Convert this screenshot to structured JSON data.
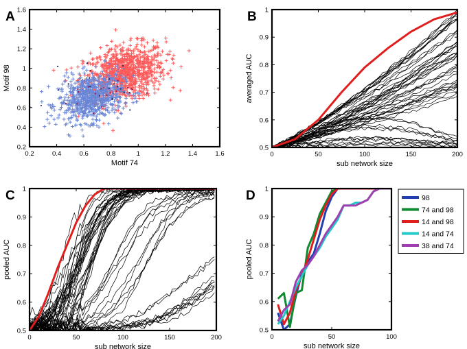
{
  "chart_data": [
    {
      "id": "A",
      "type": "scatter",
      "panel_label": "A",
      "xlabel": "Motif 74",
      "ylabel": "Motif 98",
      "xlim": [
        0.2,
        1.6
      ],
      "ylim": [
        0.2,
        1.6
      ],
      "xticks": [
        "0.2",
        "0.4",
        "0.6",
        "0.8",
        "1",
        "1.2",
        "1.4",
        "1.6"
      ],
      "yticks": [
        "0.2",
        "0.4",
        "0.6",
        "0.8",
        "1",
        "1.2",
        "1.4",
        "1.6"
      ],
      "series": [
        {
          "name": "red cluster",
          "color": "#ff5a5a",
          "marker": "plus",
          "center": [
            0.9,
            0.95
          ],
          "spread": [
            0.15,
            0.14
          ],
          "count": 900
        },
        {
          "name": "blue cluster",
          "color": "#6a86d6",
          "marker": "plus",
          "center": [
            0.65,
            0.7
          ],
          "spread": [
            0.12,
            0.12
          ],
          "count": 700
        }
      ]
    },
    {
      "id": "B",
      "type": "line",
      "panel_label": "B",
      "xlabel": "sub network size",
      "ylabel": "averaged AUC",
      "xlim": [
        0,
        200
      ],
      "ylim": [
        0.5,
        1
      ],
      "xticks": [
        "0",
        "50",
        "100",
        "150",
        "200"
      ],
      "yticks": [
        "0.5",
        "0.6",
        "0.7",
        "0.8",
        "0.9",
        "1"
      ],
      "highlight": {
        "color": "#e01e1e",
        "x": [
          0,
          25,
          50,
          75,
          100,
          125,
          150,
          175,
          200
        ],
        "y": [
          0.5,
          0.53,
          0.6,
          0.7,
          0.79,
          0.86,
          0.92,
          0.965,
          0.99
        ]
      },
      "background_lines": {
        "color": "#000000",
        "count": 50
      }
    },
    {
      "id": "C",
      "type": "line",
      "panel_label": "C",
      "xlabel": "sub network size",
      "ylabel": "pooled AUC",
      "xlim": [
        0,
        200
      ],
      "ylim": [
        0.5,
        1
      ],
      "xticks": [
        "0",
        "50",
        "100",
        "150",
        "200"
      ],
      "yticks": [
        "0.5",
        "0.6",
        "0.7",
        "0.8",
        "0.9",
        "1"
      ],
      "highlight": {
        "color": "#e01e1e",
        "x": [
          0,
          10,
          20,
          30,
          40,
          50,
          60,
          70,
          80,
          100,
          200
        ],
        "y": [
          0.5,
          0.55,
          0.63,
          0.72,
          0.8,
          0.88,
          0.94,
          0.98,
          1.0,
          1.0,
          1.0
        ]
      },
      "background_lines": {
        "color": "#000000",
        "count": 50
      }
    },
    {
      "id": "D",
      "type": "line",
      "panel_label": "D",
      "xlabel": "sub network size",
      "ylabel": "pooled AUC",
      "xlim": [
        0,
        100
      ],
      "ylim": [
        0.5,
        1
      ],
      "xticks": [
        "0",
        "50",
        "100"
      ],
      "yticks": [
        "0.5",
        "0.6",
        "0.7",
        "0.8",
        "0.9",
        "1"
      ],
      "x": [
        5,
        10,
        15,
        20,
        25,
        30,
        35,
        40,
        45,
        50,
        55,
        60,
        65,
        70,
        75,
        80,
        85,
        90,
        95,
        100
      ],
      "series": [
        {
          "name": "98",
          "color": "#2040b0",
          "values": [
            0.56,
            0.5,
            0.52,
            0.62,
            0.7,
            0.74,
            0.77,
            0.84,
            0.92,
            0.97,
            1.0,
            1.0,
            1.0,
            1.0,
            1.0,
            1.0,
            1.0,
            1.0,
            1.0,
            1.0
          ]
        },
        {
          "name": "74 and 98",
          "color": "#108a30",
          "values": [
            0.61,
            0.63,
            0.51,
            0.63,
            0.64,
            0.79,
            0.84,
            0.91,
            0.95,
            0.99,
            1.0,
            1.0,
            1.0,
            1.0,
            1.0,
            1.0,
            1.0,
            1.0,
            1.0,
            1.0
          ]
        },
        {
          "name": "14 and 98",
          "color": "#e01e1e",
          "values": [
            0.59,
            0.52,
            0.56,
            0.64,
            0.69,
            0.75,
            0.82,
            0.89,
            0.94,
            0.98,
            1.0,
            1.0,
            1.0,
            1.0,
            1.0,
            1.0,
            1.0,
            1.0,
            1.0,
            1.0
          ]
        },
        {
          "name": "14 and 74",
          "color": "#20c8c8",
          "values": [
            0.52,
            0.55,
            0.6,
            0.65,
            0.69,
            0.73,
            0.76,
            0.79,
            0.83,
            0.86,
            0.89,
            0.94,
            0.94,
            0.95,
            0.95,
            0.96,
            0.99,
            1.0,
            1.0,
            1.0
          ]
        },
        {
          "name": "38 and 74",
          "color": "#a040b0",
          "values": [
            0.53,
            0.57,
            0.59,
            0.67,
            0.71,
            0.73,
            0.76,
            0.8,
            0.84,
            0.87,
            0.9,
            0.94,
            0.94,
            0.94,
            0.95,
            0.96,
            0.99,
            1.0,
            1.0,
            1.0
          ]
        }
      ]
    }
  ]
}
